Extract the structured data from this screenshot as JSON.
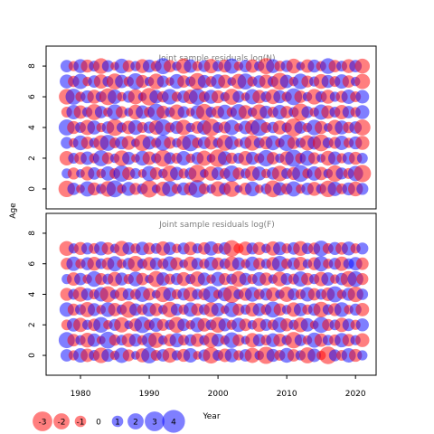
{
  "colors": {
    "positive": "#0000ff",
    "negative": "#ff0000",
    "panel_title": "#808080",
    "frame": "#000000"
  },
  "shared": {
    "xlabel": "Year",
    "ylabel": "Age",
    "xlim": [
      1975,
      2023
    ],
    "ylim": [
      -1.3,
      9.3
    ],
    "xticks": [
      "1980",
      "1990",
      "2000",
      "2010",
      "2020"
    ],
    "yticks": [
      "0",
      "2",
      "4",
      "6",
      "8"
    ],
    "years": [
      1978,
      1979,
      1980,
      1981,
      1982,
      1983,
      1984,
      1985,
      1986,
      1987,
      1988,
      1989,
      1990,
      1991,
      1992,
      1993,
      1994,
      1995,
      1996,
      1997,
      1998,
      1999,
      2000,
      2001,
      2002,
      2003,
      2004,
      2005,
      2006,
      2007,
      2008,
      2009,
      2010,
      2011,
      2012,
      2013,
      2014,
      2015,
      2016,
      2017,
      2018,
      2019,
      2020,
      2021
    ],
    "ages_n": [
      0,
      1,
      2,
      3,
      4,
      5,
      6,
      7,
      8
    ],
    "ages_f": [
      0,
      1,
      2,
      3,
      4,
      5,
      6,
      7
    ]
  },
  "legend": {
    "values": [
      -3,
      -2,
      -1,
      0,
      1,
      2,
      3,
      4
    ],
    "labels": [
      "-3",
      "-2",
      "-1",
      "0",
      "1",
      "2",
      "3",
      "4"
    ]
  },
  "chart_data": [
    {
      "type": "scatter",
      "title": "Joint sample residuals log(N)",
      "encoding": "bubble size = |residual|, blue = positive, red = negative",
      "residuals": [
        [
          -2.1,
          1.2,
          -0.6,
          1.8,
          -1.3,
          0.8,
          -1.9,
          2.2,
          -0.7,
          1.5,
          -1.1,
          0.9,
          -2.3,
          0.6,
          -1.6,
          1.9,
          -0.8,
          1.3,
          -1.4,
          2.4,
          -0.9,
          0.7,
          -1.8,
          1.1,
          -2.0,
          0.5,
          -1.2,
          1.7,
          -0.6,
          0.9,
          -2.2,
          1.4,
          -1.0,
          1.8,
          -0.7,
          1.2,
          -1.5,
          0.8,
          -2.1,
          1.6,
          -0.9,
          1.3,
          -1.7,
          1.1
        ],
        [
          0.8,
          -1.1,
          0.6,
          -1.5,
          1.2,
          -0.7,
          1.6,
          -0.9,
          2.1,
          -1.3,
          0.9,
          -0.6,
          1.8,
          -1.2,
          0.7,
          -2.0,
          1.4,
          -0.8,
          1.1,
          -2.4,
          0.6,
          -1.6,
          1.3,
          -0.9,
          2.0,
          -1.1,
          0.8,
          -1.7,
          1.5,
          -0.7,
          1.2,
          -1.9,
          0.9,
          -1.3,
          2.2,
          -0.8,
          1.6,
          -1.4,
          0.7,
          -2.1,
          1.1,
          -0.9,
          1.8,
          -2.3
        ],
        [
          -1.6,
          0.9,
          -1.2,
          1.4,
          -0.8,
          2.0,
          -1.1,
          0.7,
          -1.9,
          1.3,
          -0.6,
          1.7,
          -1.4,
          0.8,
          -2.2,
          1.1,
          -0.9,
          1.6,
          -0.7,
          1.2,
          -1.8,
          0.6,
          -2.4,
          1.5,
          -1.0,
          0.9,
          -1.6,
          1.3,
          -0.8,
          2.1,
          -1.2,
          0.7,
          -1.5,
          2.3,
          -0.9,
          1.8,
          -1.1,
          0.6,
          -1.7,
          1.4,
          -0.8,
          1.2,
          -1.3,
          0.9
        ],
        [
          1.1,
          -0.7,
          1.7,
          -1.2,
          0.8,
          -1.8,
          2.0,
          -0.9,
          1.3,
          -1.5,
          0.6,
          -2.1,
          1.4,
          -0.8,
          1.9,
          -1.1,
          0.7,
          -1.6,
          2.2,
          -0.9,
          1.2,
          -1.4,
          0.8,
          -2.0,
          1.5,
          -0.6,
          1.1,
          -1.9,
          0.9,
          -1.3,
          1.7,
          -0.7,
          2.1,
          -1.2,
          0.8,
          -1.8,
          1.4,
          -2.2,
          0.9,
          -1.1,
          1.6,
          -0.8,
          1.3,
          -1.5
        ],
        [
          2.0,
          -1.3,
          0.9,
          -1.8,
          1.5,
          -0.7,
          1.2,
          -2.2,
          0.8,
          -1.4,
          1.7,
          -0.9,
          1.1,
          -1.6,
          2.1,
          -0.8,
          1.3,
          -1.9,
          0.7,
          -1.2,
          1.6,
          -2.4,
          0.9,
          -1.1,
          1.8,
          -0.6,
          1.4,
          -1.7,
          2.3,
          -0.9,
          1.0,
          -1.5,
          0.8,
          -2.5,
          1.2,
          -0.7,
          1.9,
          -1.3,
          0.6,
          -1.8,
          1.5,
          -1.0,
          1.2,
          -2.0
        ],
        [
          -0.9,
          1.6,
          -1.4,
          0.8,
          -2.0,
          1.2,
          -0.7,
          1.9,
          -1.1,
          0.6,
          -1.7,
          1.4,
          -0.9,
          2.2,
          -1.3,
          0.8,
          -1.8,
          1.1,
          -0.6,
          1.5,
          -2.1,
          0.9,
          -1.2,
          1.7,
          -0.8,
          2.0,
          -1.5,
          0.7,
          -1.9,
          1.3,
          -0.9,
          1.6,
          -1.2,
          0.8,
          -2.3,
          1.1,
          -0.7,
          1.8,
          -1.4,
          0.9,
          -1.6,
          1.2,
          -0.8,
          1.5
        ],
        [
          -1.9,
          2.0,
          -0.8,
          1.3,
          -1.5,
          0.9,
          -2.2,
          1.6,
          -0.7,
          1.1,
          -1.8,
          0.6,
          -2.4,
          1.4,
          -1.0,
          1.9,
          -0.8,
          1.2,
          -1.6,
          2.1,
          -0.9,
          1.5,
          -1.3,
          0.7,
          -2.0,
          1.1,
          -0.6,
          1.8,
          -1.4,
          0.9,
          -1.7,
          1.3,
          -0.8,
          2.2,
          -1.2,
          0.7,
          -1.9,
          1.0,
          -1.5,
          0.8,
          -1.1,
          1.6,
          -0.9,
          1.4
        ],
        [
          1.5,
          -1.0,
          1.8,
          -0.7,
          1.2,
          -1.6,
          0.9,
          -2.0,
          1.4,
          -0.8,
          2.1,
          -1.3,
          0.7,
          -1.9,
          1.1,
          -0.6,
          1.7,
          -1.2,
          0.8,
          -2.2,
          1.3,
          -0.9,
          1.6,
          -1.4,
          0.6,
          -1.8,
          2.0,
          -0.8,
          1.2,
          -1.5,
          0.9,
          -2.3,
          1.4,
          -0.7,
          1.9,
          -1.1,
          0.8,
          -1.7,
          1.3,
          -0.9,
          1.6,
          -1.2,
          0.7,
          -1.8
        ],
        [
          1.2,
          -0.8,
          1.5,
          -1.3,
          0.9,
          -1.9,
          1.1,
          -0.6,
          1.7,
          -1.1,
          0.8,
          -1.5,
          1.3,
          -0.9,
          2.0,
          -1.2,
          0.7,
          -1.8,
          1.4,
          -0.8,
          1.1,
          -1.6,
          0.9,
          -1.3,
          1.8,
          -0.7,
          1.2,
          -1.4,
          0.8,
          -2.0,
          1.5,
          -0.9,
          1.1,
          -1.7,
          0.6,
          -1.4,
          1.3,
          -0.8,
          1.9,
          -1.2,
          0.9,
          -1.5,
          1.2,
          -1.7
        ]
      ]
    },
    {
      "type": "scatter",
      "title": "Joint sample residuals log(F)",
      "encoding": "bubble size = |residual|, blue = positive, red = negative",
      "residuals": [
        [
          1.2,
          -0.8,
          1.6,
          -1.4,
          0.9,
          -1.9,
          1.3,
          -0.7,
          1.8,
          -1.1,
          0.6,
          -1.5,
          2.0,
          -0.9,
          1.2,
          -1.7,
          0.8,
          -1.3,
          1.6,
          -0.6,
          1.1,
          -2.1,
          0.9,
          -1.4,
          1.5,
          -0.8,
          1.2,
          -1.8,
          0.7,
          -2.3,
          1.3,
          -0.9,
          1.7,
          -1.2,
          0.8,
          -2.0,
          1.4,
          -0.7,
          -2.4,
          1.1,
          -0.9,
          1.6,
          -1.3,
          0.8
        ],
        [
          2.0,
          -1.2,
          0.8,
          -1.7,
          1.4,
          -0.6,
          2.2,
          -1.0,
          0.9,
          -1.5,
          1.3,
          -0.8,
          1.7,
          -1.9,
          0.7,
          -1.2,
          1.6,
          -0.9,
          1.1,
          -1.4,
          0.8,
          -1.8,
          1.3,
          -0.7,
          1.9,
          -1.1,
          0.6,
          -1.6,
          1.2,
          -0.9,
          1.5,
          -1.3,
          0.8,
          -2.1,
          1.1,
          -0.7,
          1.8,
          -1.4,
          0.9,
          -1.0,
          1.6,
          -1.2,
          0.8,
          -1.5
        ],
        [
          -0.9,
          1.4,
          -1.6,
          0.8,
          -1.2,
          1.9,
          -0.7,
          1.1,
          -1.8,
          0.6,
          -1.3,
          2.1,
          -0.9,
          1.5,
          -1.1,
          0.8,
          -2.0,
          1.2,
          -0.7,
          1.7,
          -1.4,
          0.9,
          -1.9,
          1.3,
          -0.8,
          1.6,
          -1.2,
          0.7,
          -1.5,
          1.1,
          -0.9,
          1.8,
          -1.3,
          0.8,
          -1.7,
          1.4,
          -0.6,
          2.0,
          -1.1,
          0.9,
          -1.6,
          1.2,
          -0.8,
          1.3
        ],
        [
          1.6,
          -1.1,
          0.9,
          -1.8,
          1.3,
          -0.7,
          1.7,
          -1.4,
          0.8,
          -2.1,
          1.2,
          -0.9,
          1.5,
          -1.3,
          0.7,
          -1.9,
          1.1,
          -0.8,
          1.6,
          -1.2,
          0.9,
          -1.7,
          1.4,
          -0.6,
          1.8,
          -1.1,
          0.8,
          -1.5,
          1.3,
          -0.9,
          2.0,
          -1.2,
          0.7,
          -1.6,
          1.4,
          -0.8,
          1.2,
          -1.9,
          0.9,
          -1.3,
          1.7,
          -0.7,
          1.1,
          -1.4
        ],
        [
          -1.3,
          0.9,
          -1.7,
          1.2,
          -0.8,
          1.6,
          -2.0,
          0.7,
          -1.4,
          1.1,
          -0.9,
          1.8,
          -1.2,
          0.6,
          -1.9,
          1.4,
          -0.8,
          1.2,
          -1.6,
          0.9,
          -1.1,
          2.1,
          -0.7,
          1.5,
          -2.3,
          0.8,
          -1.3,
          1.7,
          -0.9,
          1.2,
          -1.5,
          0.7,
          -1.8,
          1.1,
          -0.8,
          1.6,
          -1.2,
          0.9,
          -1.4,
          2.0,
          -0.7,
          1.3,
          -1.9,
          1.0
        ],
        [
          0.8,
          -1.4,
          1.2,
          -0.7,
          1.9,
          -1.1,
          0.9,
          -1.6,
          1.3,
          -0.8,
          1.7,
          -1.2,
          0.6,
          -2.0,
          1.4,
          -0.9,
          1.1,
          -1.5,
          0.8,
          -1.8,
          1.3,
          -0.7,
          1.6,
          -1.1,
          0.9,
          -1.9,
          1.2,
          -0.8,
          1.5,
          -1.3,
          0.7,
          -1.7,
          1.1,
          -0.9,
          1.8,
          -1.2,
          0.8,
          -1.6,
          1.4,
          -0.7,
          1.2,
          -2.0,
          1.9,
          -1.1
        ],
        [
          -1.1,
          1.6,
          -0.8,
          1.3,
          -1.5,
          0.9,
          -1.2,
          1.8,
          -0.7,
          1.1,
          -1.9,
          0.8,
          -1.4,
          1.2,
          -0.9,
          1.7,
          -1.3,
          0.6,
          -1.6,
          1.1,
          -0.8,
          1.5,
          -1.2,
          0.9,
          -1.7,
          1.3,
          -0.7,
          1.6,
          -1.1,
          0.8,
          -1.4,
          1.9,
          -0.9,
          1.2,
          -1.5,
          0.7,
          -1.3,
          1.8,
          -0.8,
          1.1,
          -1.6,
          0.9,
          1.4,
          -1.2
        ],
        [
          -1.7,
          0.8,
          -1.3,
          1.1,
          -0.9,
          1.5,
          -1.2,
          0.7,
          -1.8,
          1.2,
          -0.8,
          1.4,
          -1.1,
          0.9,
          -1.6,
          1.3,
          -0.7,
          1.1,
          -1.4,
          0.8,
          -1.2,
          1.6,
          -0.9,
          1.2,
          -2.1,
          -0.8,
          -1.5,
          1.1,
          -1.3,
          0.7,
          -1.6,
          1.4,
          -0.8,
          1.2,
          -1.7,
          1.0,
          -1.1,
          1.9,
          -0.9,
          1.3,
          -1.2,
          1.5,
          -0.8,
          1.1
        ]
      ]
    }
  ]
}
